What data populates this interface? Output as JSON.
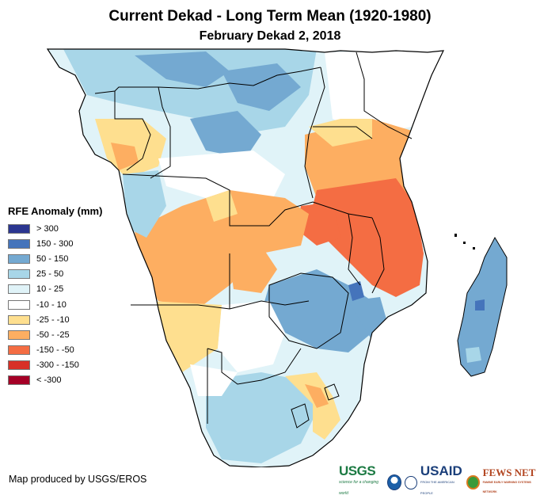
{
  "header": {
    "title": "Current Dekad - Long Term Mean (1920-1980)",
    "subtitle": "February Dekad 2, 2018"
  },
  "legend": {
    "title": "RFE Anomaly (mm)",
    "items": [
      {
        "label": "> 300",
        "color": "#2b3690"
      },
      {
        "label": "150 - 300",
        "color": "#4574bb"
      },
      {
        "label": "50 - 150",
        "color": "#74a9d1"
      },
      {
        "label": "25 - 50",
        "color": "#a8d6e8"
      },
      {
        "label": "10 - 25",
        "color": "#e0f3f8"
      },
      {
        "label": "-10 - 10",
        "color": "#ffffff"
      },
      {
        "label": "-25 - -10",
        "color": "#fedf8f"
      },
      {
        "label": "-50 - -25",
        "color": "#fdae61"
      },
      {
        "label": "-150 - -50",
        "color": "#f46d43"
      },
      {
        "label": "-300 - -150",
        "color": "#d73027"
      },
      {
        "label": "< -300",
        "color": "#a50026"
      }
    ]
  },
  "map": {
    "region": "Southern Africa",
    "variable": "RFE Anomaly (mm)"
  },
  "footer": {
    "credit": "Map produced by USGS/EROS",
    "logos": {
      "usgs": "USGS",
      "usgs_tagline": "science for a changing world",
      "usaid": "USAID",
      "usaid_tagline": "FROM THE AMERICAN PEOPLE",
      "fews": "FEWS NET",
      "fews_tagline": "FAMINE EARLY WARNING SYSTEMS NETWORK"
    }
  }
}
